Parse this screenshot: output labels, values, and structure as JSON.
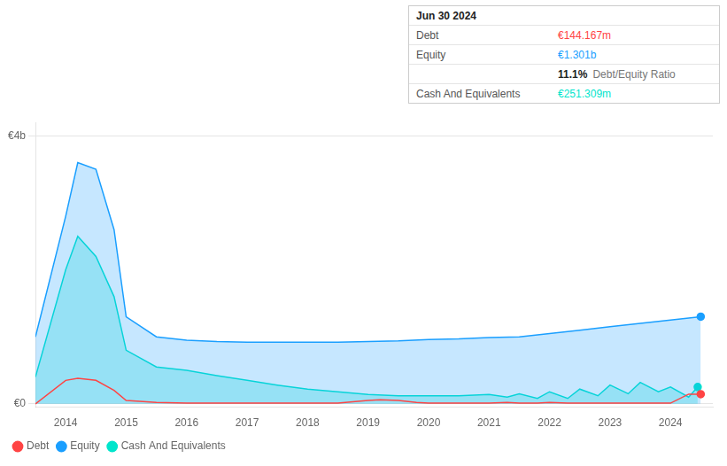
{
  "chart_data": {
    "type": "line",
    "series": [
      {
        "name": "Debt",
        "color": "#ff4444",
        "type": "line",
        "marker": "circle",
        "x": [
          2013.5,
          2014.0,
          2014.2,
          2014.5,
          2014.8,
          2015.0,
          2015.5,
          2016.0,
          2016.5,
          2017.0,
          2017.5,
          2018.0,
          2018.5,
          2019.0,
          2019.2,
          2019.5,
          2019.8,
          2020.0,
          2020.5,
          2021.0,
          2021.3,
          2021.5,
          2021.8,
          2022.0,
          2022.3,
          2022.5,
          2022.8,
          2023.0,
          2023.3,
          2023.5,
          2023.8,
          2024.0,
          2024.3,
          2024.5
        ],
        "values": [
          0,
          350000000,
          380000000,
          350000000,
          200000000,
          50000000,
          20000000,
          10000000,
          10000000,
          10000000,
          10000000,
          10000000,
          10000000,
          50000000,
          60000000,
          50000000,
          20000000,
          10000000,
          10000000,
          10000000,
          20000000,
          10000000,
          10000000,
          20000000,
          10000000,
          10000000,
          10000000,
          10000000,
          10000000,
          10000000,
          10000000,
          10000000,
          144167000,
          144167000
        ]
      },
      {
        "name": "Equity",
        "color": "#1a9fff",
        "type": "area",
        "marker": "circle",
        "x": [
          2013.5,
          2014.0,
          2014.2,
          2014.5,
          2014.8,
          2015.0,
          2015.5,
          2016.0,
          2016.5,
          2017.0,
          2017.5,
          2018.0,
          2018.5,
          2019.0,
          2019.5,
          2020.0,
          2020.5,
          2021.0,
          2021.5,
          2022.0,
          2022.5,
          2023.0,
          2023.5,
          2024.0,
          2024.5
        ],
        "values": [
          1000000000,
          2800000000,
          3600000000,
          3500000000,
          2600000000,
          1300000000,
          1000000000,
          950000000,
          930000000,
          920000000,
          920000000,
          920000000,
          920000000,
          930000000,
          940000000,
          960000000,
          970000000,
          990000000,
          1000000000,
          1050000000,
          1100000000,
          1150000000,
          1200000000,
          1250000000,
          1301000000
        ]
      },
      {
        "name": "Cash And Equivalents",
        "color": "#00e5cc",
        "type": "area",
        "marker": "circle",
        "x": [
          2013.5,
          2014.0,
          2014.2,
          2014.5,
          2014.8,
          2015.0,
          2015.5,
          2016.0,
          2016.5,
          2017.0,
          2017.5,
          2018.0,
          2018.5,
          2019.0,
          2019.5,
          2020.0,
          2020.5,
          2021.0,
          2021.3,
          2021.5,
          2021.8,
          2022.0,
          2022.3,
          2022.5,
          2022.8,
          2023.0,
          2023.3,
          2023.5,
          2023.8,
          2024.0,
          2024.3,
          2024.45
        ],
        "values": [
          400000000,
          2000000000,
          2500000000,
          2200000000,
          1600000000,
          800000000,
          550000000,
          500000000,
          420000000,
          350000000,
          280000000,
          220000000,
          180000000,
          140000000,
          120000000,
          120000000,
          120000000,
          140000000,
          100000000,
          150000000,
          80000000,
          180000000,
          80000000,
          220000000,
          120000000,
          280000000,
          150000000,
          320000000,
          180000000,
          250000000,
          100000000,
          251309000
        ]
      }
    ],
    "xlim": [
      2013.5,
      2024.7
    ],
    "xticks": [
      2014,
      2015,
      2016,
      2017,
      2018,
      2019,
      2020,
      2021,
      2022,
      2023,
      2024
    ],
    "ylim": [
      -50000000,
      4200000000
    ],
    "yticks": [
      {
        "value": 0,
        "label": "€0"
      },
      {
        "value": 4000000000,
        "label": "€4b"
      }
    ],
    "grid": "y",
    "legend": "lower left",
    "annotations": [
      {
        "text": "Jun 30 2024"
      },
      {
        "label": "Debt",
        "text": "€144.167m",
        "color": "#ff4444"
      },
      {
        "label": "Equity",
        "text": "€1.301b",
        "color": "#1a9fff"
      },
      {
        "text": "11.1%",
        "suffix": "Debt/Equity Ratio"
      },
      {
        "label": "Cash And Equivalents",
        "text": "€251.309m",
        "color": "#00e5cc"
      }
    ]
  }
}
